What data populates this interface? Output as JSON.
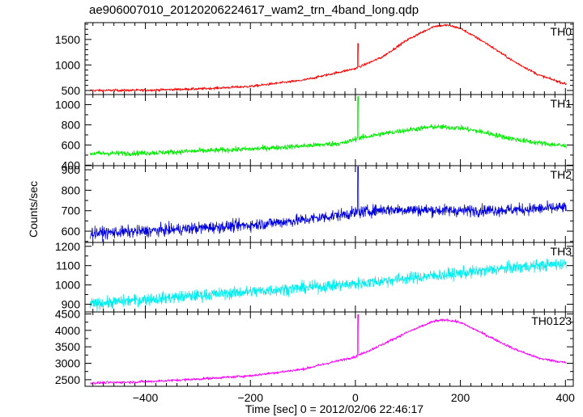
{
  "chart_data": {
    "type": "line",
    "title": "ae906007010_20120206224617_wam2_trn_4band_long.qdp",
    "xlabel": "Time [sec] 0 = 2012/02/06 22:46:17",
    "ylabel": "Counts/sec",
    "xlim": [
      -515,
      415
    ],
    "x_ticks": [
      -400,
      -200,
      0,
      200,
      400
    ],
    "x_tick_labels": [
      "−400",
      "−200",
      "0",
      "200",
      "400"
    ],
    "grid": false,
    "panels": [
      {
        "name": "TH0",
        "color": "#ff0000",
        "ylim": [
          420,
          1830
        ],
        "y_ticks": [
          500,
          1000,
          1500
        ],
        "y_minor": 100,
        "noise": 25,
        "spike": {
          "x": 5,
          "y": 1420
        },
        "points": [
          [
            -505,
            500
          ],
          [
            -400,
            505
          ],
          [
            -300,
            530
          ],
          [
            -200,
            580
          ],
          [
            -100,
            700
          ],
          [
            0,
            930
          ],
          [
            50,
            1150
          ],
          [
            100,
            1500
          ],
          [
            150,
            1760
          ],
          [
            175,
            1780
          ],
          [
            200,
            1720
          ],
          [
            250,
            1420
          ],
          [
            300,
            1080
          ],
          [
            350,
            800
          ],
          [
            400,
            630
          ]
        ]
      },
      {
        "name": "TH1",
        "color": "#00ee00",
        "ylim": [
          395,
          1100
        ],
        "y_ticks": [
          400,
          600,
          800,
          1000
        ],
        "y_minor": 100,
        "noise": 25,
        "spike": {
          "x": 5,
          "y": 1080
        },
        "points": [
          [
            -505,
            515
          ],
          [
            -400,
            520
          ],
          [
            -300,
            540
          ],
          [
            -200,
            560
          ],
          [
            -100,
            590
          ],
          [
            -20,
            620
          ],
          [
            0,
            660
          ],
          [
            50,
            710
          ],
          [
            100,
            750
          ],
          [
            150,
            780
          ],
          [
            200,
            770
          ],
          [
            250,
            720
          ],
          [
            300,
            660
          ],
          [
            350,
            620
          ],
          [
            400,
            590
          ]
        ]
      },
      {
        "name": "TH2",
        "color": "#0000dd",
        "ylim": [
          545,
          920
        ],
        "y_ticks": [
          600,
          700,
          800,
          900
        ],
        "y_minor": 50,
        "noise": 28,
        "spike": {
          "x": 5,
          "y": 915
        },
        "points": [
          [
            -505,
            590
          ],
          [
            -400,
            600
          ],
          [
            -300,
            615
          ],
          [
            -200,
            630
          ],
          [
            -100,
            655
          ],
          [
            0,
            690
          ],
          [
            50,
            705
          ],
          [
            100,
            705
          ],
          [
            200,
            700
          ],
          [
            300,
            705
          ],
          [
            400,
            715
          ]
        ]
      },
      {
        "name": "TH3",
        "color": "#00eeee",
        "ylim": [
          860,
          1220
        ],
        "y_ticks": [
          900,
          1000,
          1100,
          1200
        ],
        "y_minor": 50,
        "noise": 30,
        "spike": null,
        "points": [
          [
            -505,
            900
          ],
          [
            -400,
            925
          ],
          [
            -300,
            945
          ],
          [
            -200,
            965
          ],
          [
            -100,
            985
          ],
          [
            0,
            1005
          ],
          [
            100,
            1035
          ],
          [
            200,
            1060
          ],
          [
            300,
            1090
          ],
          [
            400,
            1110
          ]
        ]
      },
      {
        "name": "TH0123",
        "color": "#ff00ff",
        "ylim": [
          2300,
          4560
        ],
        "y_ticks": [
          2500,
          3000,
          3500,
          4000,
          4500
        ],
        "y_minor": 250,
        "noise": 40,
        "spike": {
          "x": 5,
          "y": 4480
        },
        "points": [
          [
            -505,
            2400
          ],
          [
            -400,
            2440
          ],
          [
            -300,
            2520
          ],
          [
            -200,
            2620
          ],
          [
            -100,
            2820
          ],
          [
            0,
            3200
          ],
          [
            50,
            3560
          ],
          [
            100,
            3950
          ],
          [
            150,
            4280
          ],
          [
            175,
            4320
          ],
          [
            200,
            4240
          ],
          [
            250,
            3850
          ],
          [
            300,
            3450
          ],
          [
            350,
            3150
          ],
          [
            400,
            3020
          ]
        ]
      }
    ]
  }
}
